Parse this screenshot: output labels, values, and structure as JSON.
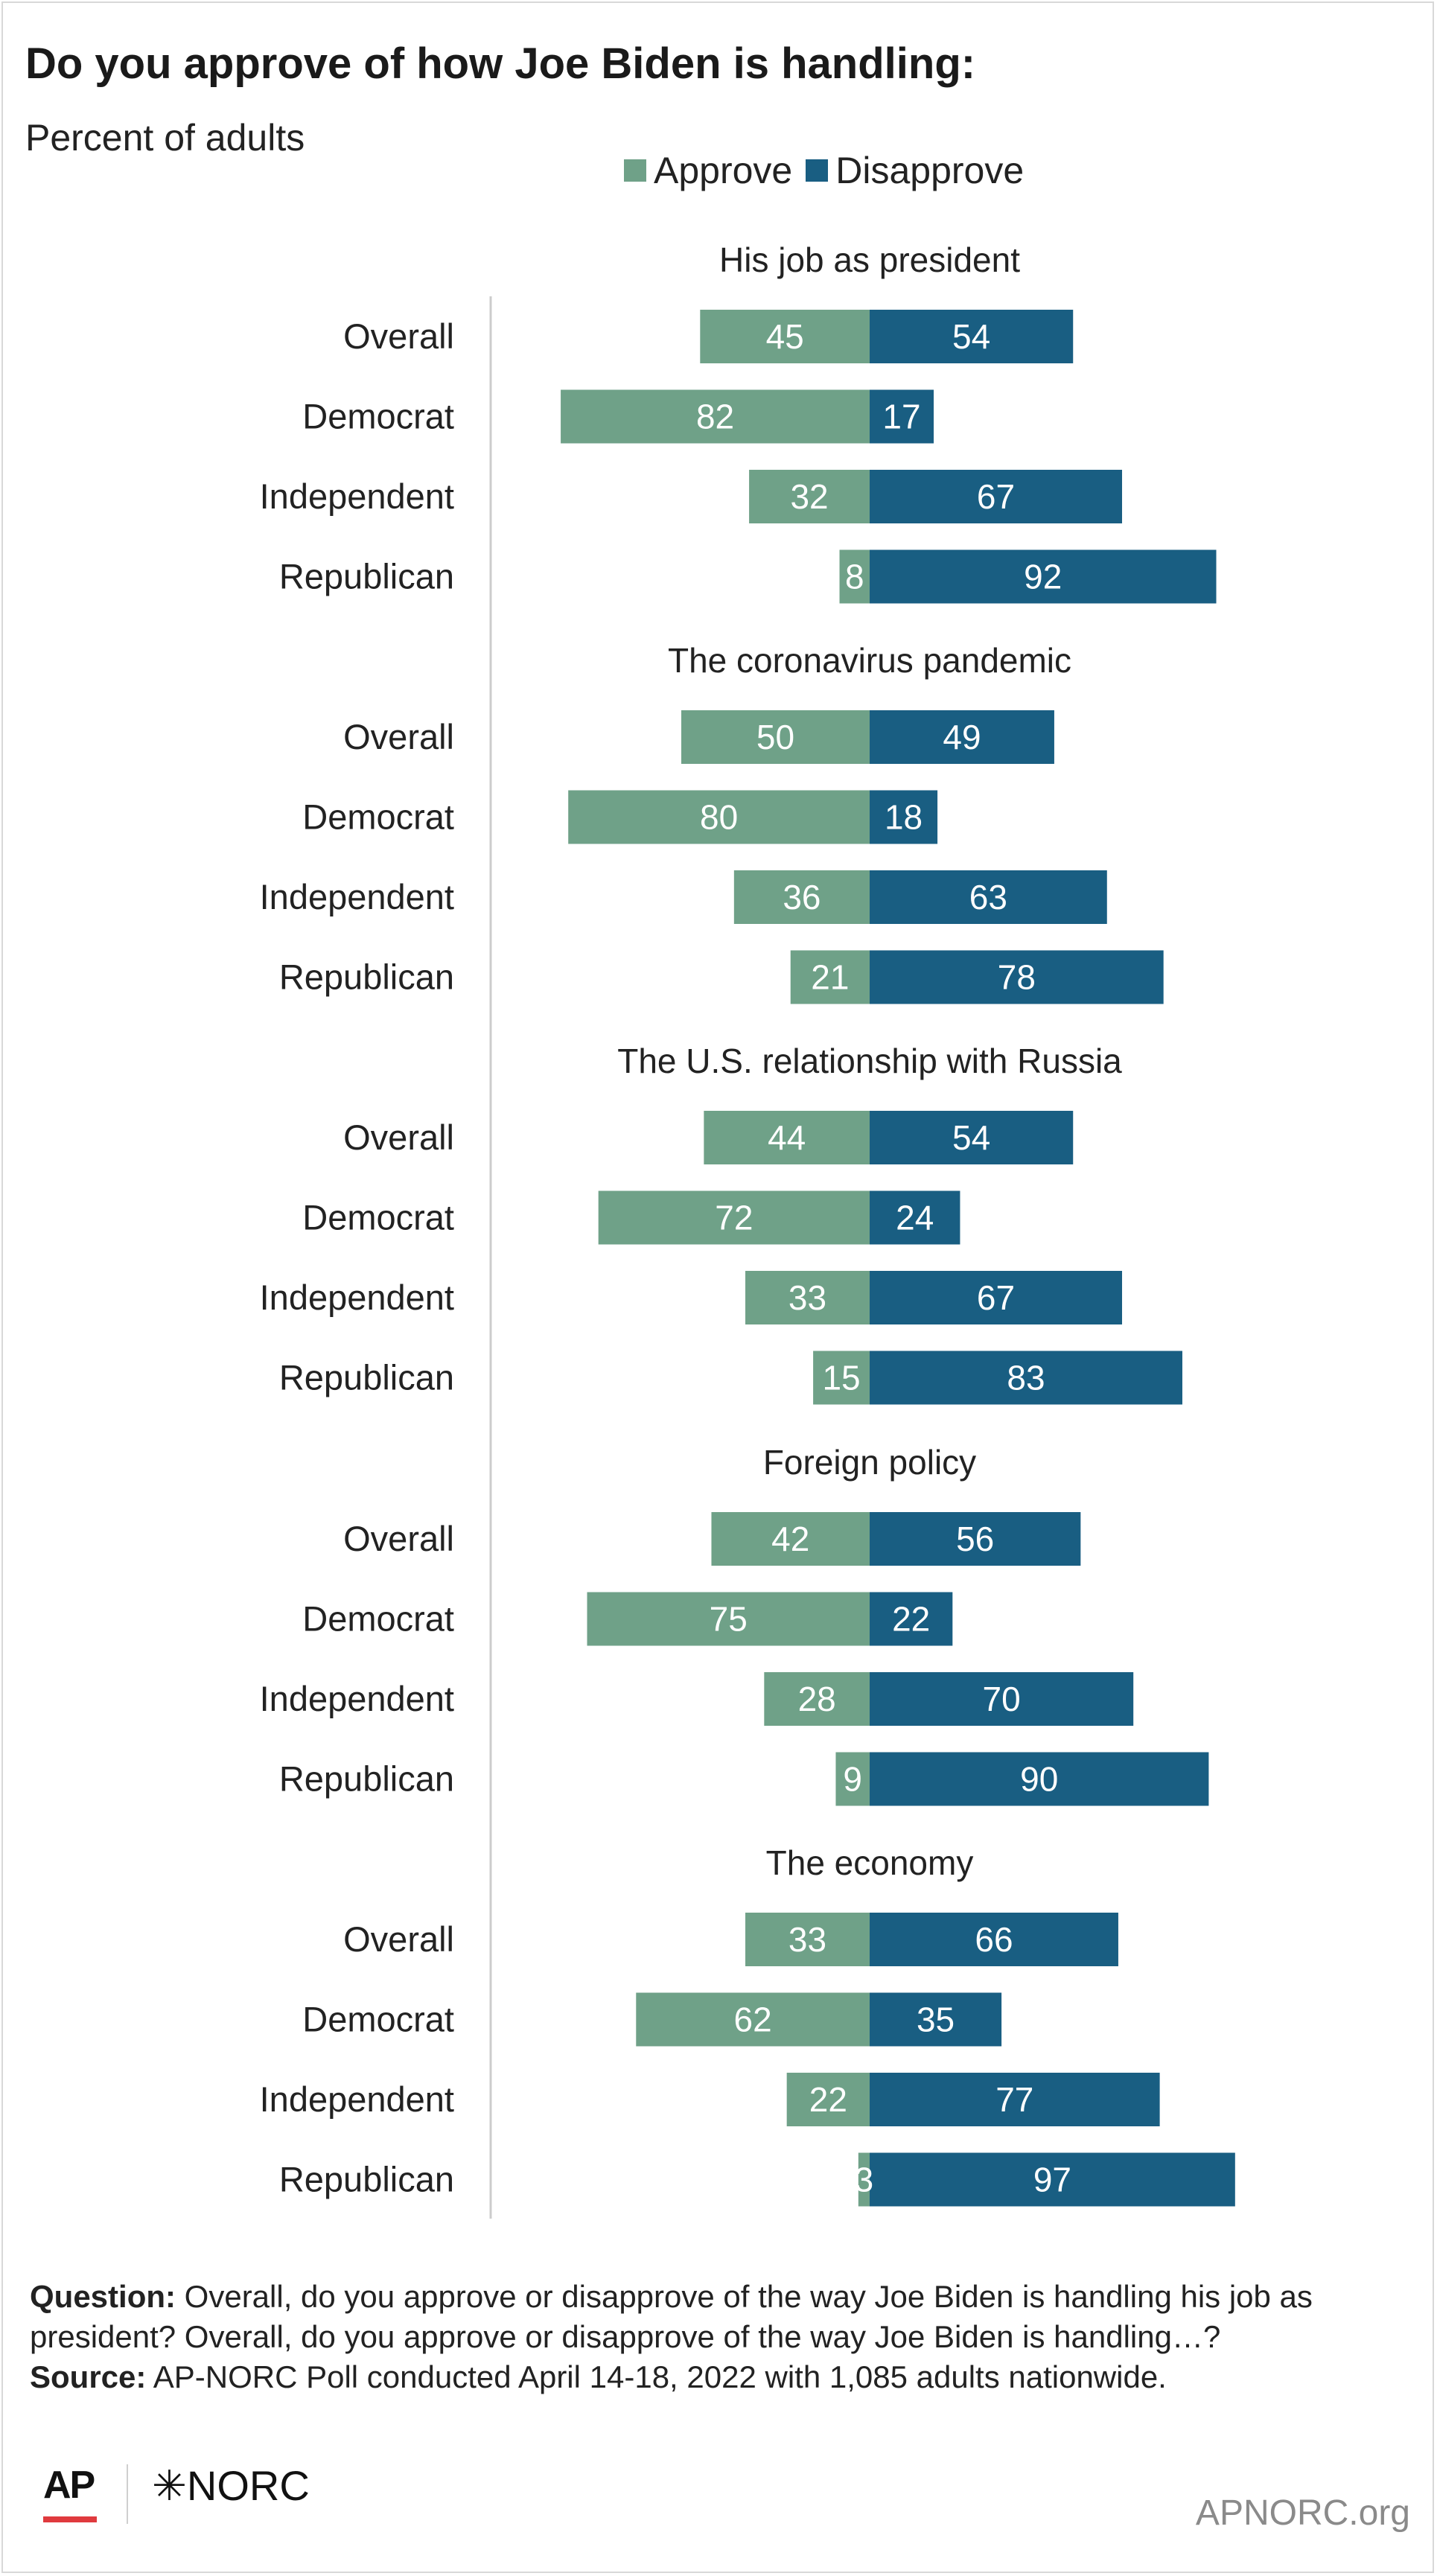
{
  "title": "Do you approve of how Joe Biden is handling:",
  "subtitle": "Percent of adults",
  "legend": {
    "approve": "Approve",
    "disapprove": "Disapprove"
  },
  "colors": {
    "approve": "#6fa188",
    "disapprove": "#195e82",
    "axis": "#cccccc",
    "text": "#222222"
  },
  "chart_data": {
    "type": "bar",
    "orientation": "horizontal-diverging",
    "groups": [
      {
        "title": "His job as president",
        "categories": [
          "Overall",
          "Democrat",
          "Independent",
          "Republican"
        ],
        "approve": [
          45,
          82,
          32,
          8
        ],
        "disapprove": [
          54,
          17,
          67,
          92
        ]
      },
      {
        "title": "The coronavirus pandemic",
        "categories": [
          "Overall",
          "Democrat",
          "Independent",
          "Republican"
        ],
        "approve": [
          50,
          80,
          36,
          21
        ],
        "disapprove": [
          49,
          18,
          63,
          78
        ]
      },
      {
        "title": "The U.S. relationship with Russia",
        "categories": [
          "Overall",
          "Democrat",
          "Independent",
          "Republican"
        ],
        "approve": [
          44,
          72,
          33,
          15
        ],
        "disapprove": [
          54,
          24,
          67,
          83
        ]
      },
      {
        "title": "Foreign policy",
        "categories": [
          "Overall",
          "Democrat",
          "Independent",
          "Republican"
        ],
        "approve": [
          42,
          75,
          28,
          9
        ],
        "disapprove": [
          56,
          22,
          70,
          90
        ]
      },
      {
        "title": "The economy",
        "categories": [
          "Overall",
          "Democrat",
          "Independent",
          "Republican"
        ],
        "approve": [
          33,
          62,
          22,
          3
        ],
        "disapprove": [
          66,
          35,
          77,
          97
        ]
      }
    ],
    "series": [
      {
        "name": "Approve"
      },
      {
        "name": "Disapprove"
      }
    ],
    "legend_position": "top"
  },
  "footer": {
    "question_label": "Question:",
    "question_text": " Overall, do you approve or disapprove of the way Joe Biden is handling his job as president? Overall, do you approve or disapprove of the way Joe Biden is handling…?",
    "source_label": "Source:",
    "source_text": " AP-NORC Poll conducted April 14-18, 2022 with 1,085 adults nationwide."
  },
  "logos": {
    "ap": "AP",
    "norc": "✳NORC",
    "site": "APNORC.org"
  }
}
